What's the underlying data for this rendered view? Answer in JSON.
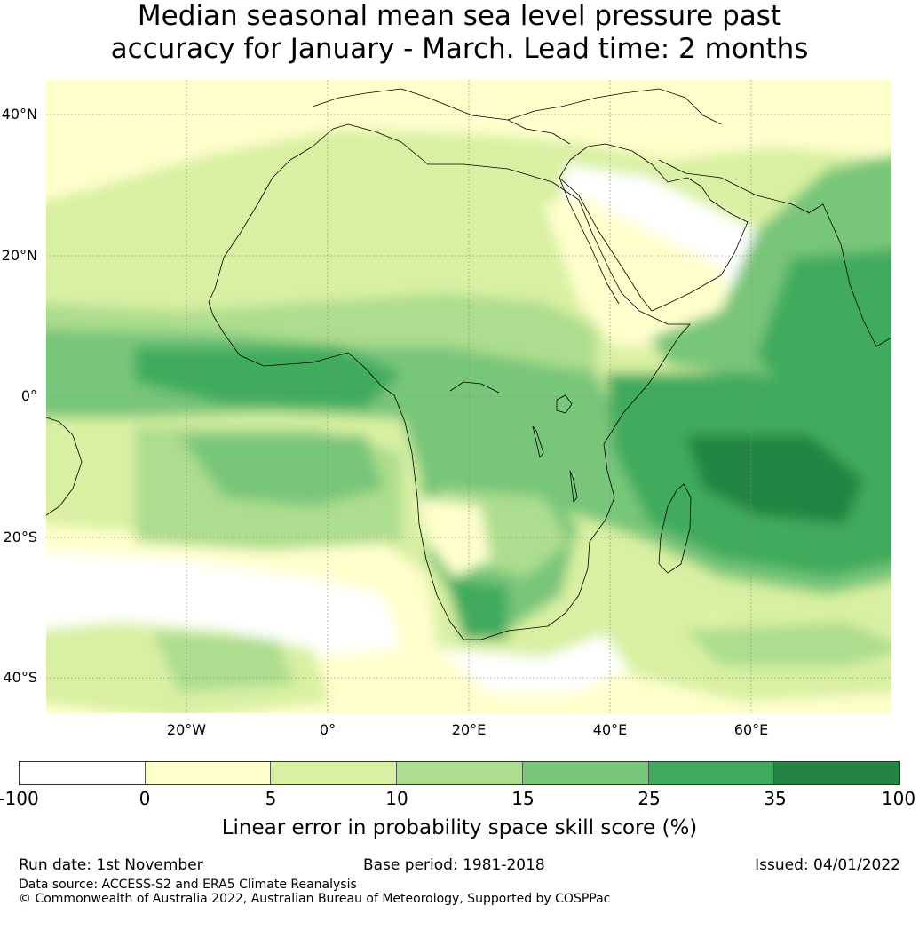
{
  "title_line1": "Median seasonal mean sea level pressure past",
  "title_line2": "accuracy for January - March. Lead time: 2 months",
  "map": {
    "lat_labels": [
      "40°N",
      "20°N",
      "0°",
      "20°S",
      "40°S"
    ],
    "lat_values": [
      40,
      20,
      0,
      -20,
      -40
    ],
    "lon_labels": [
      "20°W",
      "0°",
      "20°E",
      "40°E",
      "60°E"
    ],
    "lon_values": [
      -20,
      0,
      20,
      40,
      60
    ],
    "lon_range": [
      -40,
      80
    ],
    "lat_range": [
      -45,
      45
    ]
  },
  "colorbar": {
    "ticks": [
      "-100",
      "0",
      "5",
      "10",
      "15",
      "25",
      "35",
      "100"
    ],
    "colors": [
      "#ffffff",
      "#ffffcc",
      "#d9f0a3",
      "#addd8e",
      "#78c679",
      "#41ab5d",
      "#238443"
    ],
    "label": "Linear error in probability space skill score (%)"
  },
  "footer": {
    "run_date": "Run date: 1st November",
    "base_period": "Base period: 1981-2018",
    "issued": "Issued: 04/01/2022",
    "data_source": "Data source: ACCESS-S2 and ERA5 Climate Reanalysis",
    "copyright": "© Commonwealth of Australia 2022, Australian Bureau of Meteorology, Supported by COSPPac"
  }
}
